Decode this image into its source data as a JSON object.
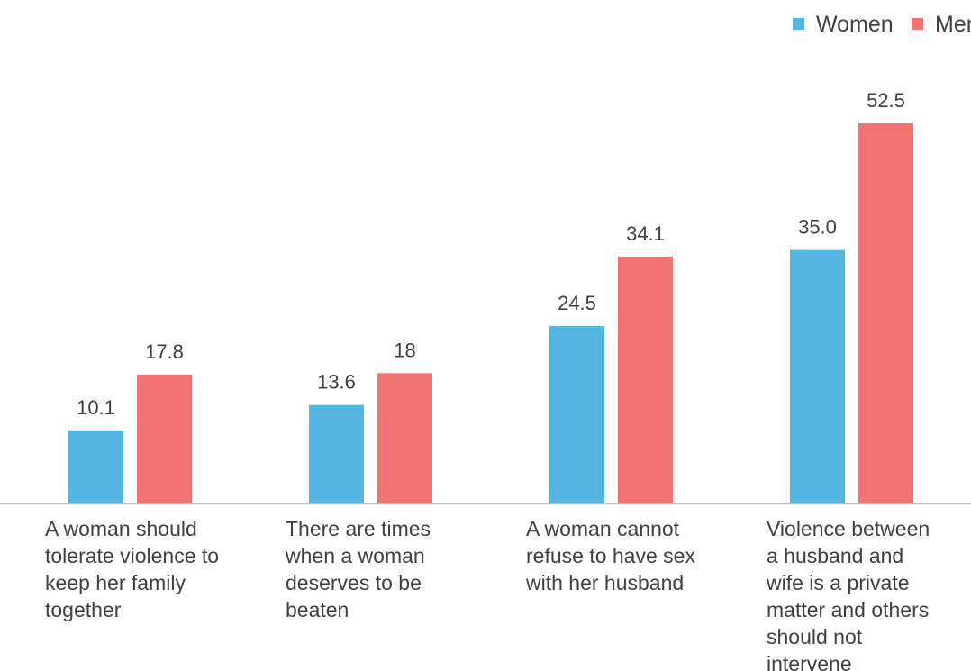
{
  "chart_data": {
    "type": "bar",
    "categories": [
      [
        "A woman should",
        "tolerate violence to",
        "keep her family",
        "together"
      ],
      [
        "There are times",
        "when a woman",
        "deserves to be",
        "beaten"
      ],
      [
        "A woman cannot",
        "refuse to have sex",
        "with her husband"
      ],
      [
        "Violence between",
        "a husband and",
        "wife is a private",
        "matter and others",
        "should not",
        "intervene"
      ]
    ],
    "series": [
      {
        "name": "Women",
        "color": "#53b5e0",
        "values": [
          10.1,
          13.6,
          24.5,
          35.0
        ],
        "labels": [
          "10.1",
          "13.6",
          "24.5",
          "35.0"
        ]
      },
      {
        "name": "Men",
        "color": "#f27373",
        "values": [
          17.8,
          18,
          34.1,
          52.5
        ],
        "labels": [
          "17.8",
          "18",
          "34.1",
          "52.5"
        ]
      }
    ],
    "ylim": [
      0,
      52.5
    ],
    "grid": false,
    "legend_position": "top-right",
    "baseline_color": "#bfbfbf"
  }
}
